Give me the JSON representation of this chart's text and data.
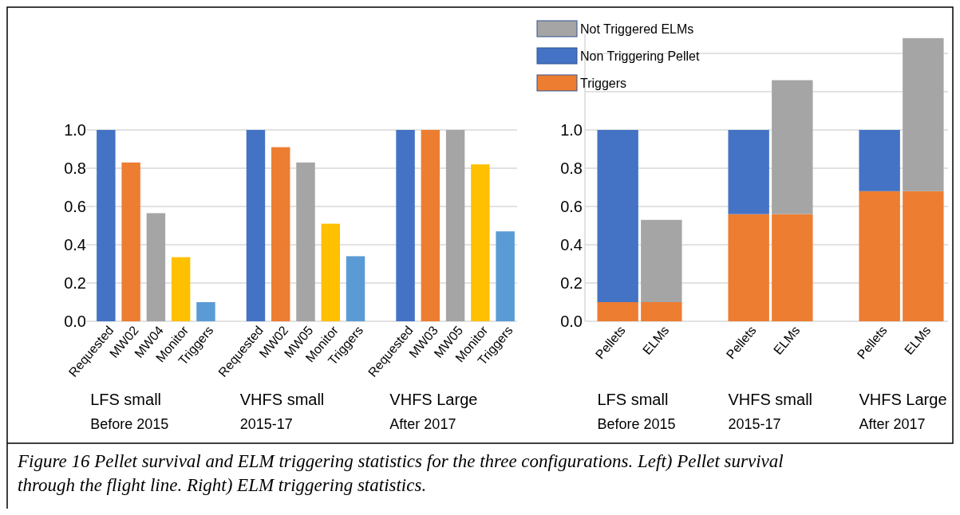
{
  "chart_data": [
    {
      "type": "bar",
      "categories": [
        "Requested",
        "MW02",
        "MW04",
        "Monitor",
        "Triggers",
        null,
        "Requested",
        "MW02",
        "MW05",
        "Monitor",
        "Triggers",
        null,
        "Requested",
        "MW03",
        "MW05",
        "Monitor",
        "Triggers"
      ],
      "values": [
        1.0,
        0.83,
        0.565,
        0.335,
        0.1,
        null,
        1.0,
        0.91,
        0.83,
        0.51,
        0.34,
        null,
        1.0,
        1.0,
        1.0,
        0.82,
        0.47
      ],
      "colors": [
        "#4472c4",
        "#ed7d31",
        "#a5a5a5",
        "#ffc000",
        "#5b9bd5",
        null,
        "#4472c4",
        "#ed7d31",
        "#a5a5a5",
        "#ffc000",
        "#5b9bd5",
        null,
        "#4472c4",
        "#ed7d31",
        "#a5a5a5",
        "#ffc000",
        "#5b9bd5"
      ],
      "ylim": [
        0,
        1.0
      ],
      "yticks": [
        {
          "value": 0,
          "label": "0.0"
        },
        {
          "value": 0.2,
          "label": "0.2"
        },
        {
          "value": 0.4,
          "label": "0.4"
        },
        {
          "value": 0.6,
          "label": "0.6"
        },
        {
          "value": 0.8,
          "label": "0.8"
        },
        {
          "value": 1.0,
          "label": "1.0"
        }
      ],
      "grid": "y",
      "annotations": [
        "LFS small\nBefore 2015",
        "VHFS small\n2015-17",
        "VHFS Large\nAfter 2017",
        "Figure 16 Pellet survival and ELM triggering statistics for the three configurations. Left) Pellet survival through the flight line. Right) ELM triggering statistics."
      ]
    },
    {
      "type": "bar",
      "stacked": true,
      "categories": [
        "Pellets",
        "ELMs",
        null,
        "Pellets",
        "ELMs",
        null,
        "Pellets",
        "ELMs"
      ],
      "series": [
        {
          "name": "Triggers",
          "color": "#ed7d31",
          "values": [
            0.1,
            0.1,
            null,
            0.56,
            0.56,
            null,
            0.68,
            0.68
          ]
        },
        {
          "name": "Non Triggering Pellet",
          "color": "#4472c4",
          "values": [
            0.9,
            null,
            null,
            0.44,
            null,
            null,
            0.32,
            null
          ]
        },
        {
          "name": "Not Triggered ELMs",
          "color": "#a5a5a5",
          "values": [
            null,
            0.43,
            null,
            null,
            0.7,
            null,
            null,
            0.8
          ]
        }
      ],
      "ylim": [
        0,
        1.5
      ],
      "yticks": [
        {
          "value": 0,
          "label": "0.0"
        },
        {
          "value": 0.2,
          "label": "0.2"
        },
        {
          "value": 0.4,
          "label": "0.4"
        },
        {
          "value": 0.6,
          "label": "0.6"
        },
        {
          "value": 0.8,
          "label": "0.8"
        },
        {
          "value": 1.0,
          "label": "1.0"
        },
        {
          "value": 1.2,
          "label": null
        },
        {
          "value": 1.4,
          "label": null
        }
      ],
      "grid": "y",
      "legend": "top left",
      "annotations": [
        "LFS small\nBefore 2015",
        "VHFS small\n2015-17",
        "VHFS Large\nAfter 2017"
      ]
    }
  ]
}
